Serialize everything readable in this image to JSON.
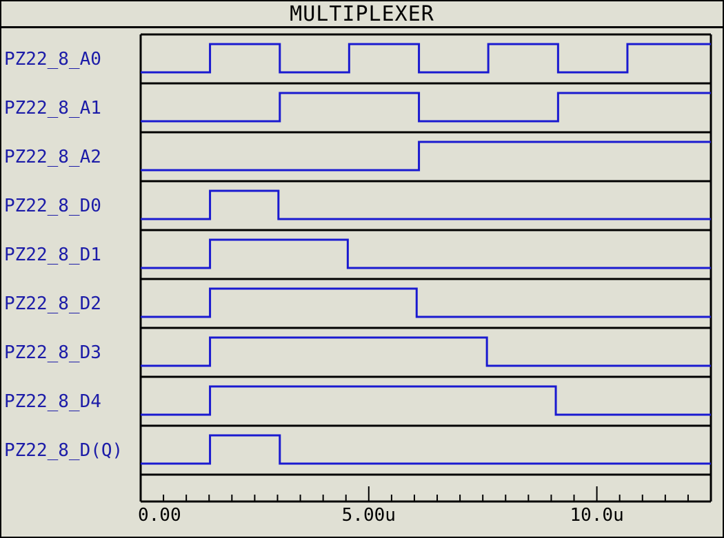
{
  "title": "MULTIPLEXER",
  "colors": {
    "background": "#e0e0d4",
    "signal": "#1a1ad0",
    "grid": "#000000",
    "label": "#1c1ca8"
  },
  "chart_data": {
    "type": "timing",
    "title": "MULTIPLEXER",
    "x_unit": "u",
    "xlim": [
      0,
      12.5
    ],
    "x_ticks": [
      0,
      5,
      10
    ],
    "x_tick_labels": [
      "0.00",
      "5.00u",
      "10.0u"
    ],
    "x_minor_step": 0.5,
    "series": [
      {
        "name": "PZ22_8_A0",
        "initial": 0,
        "transitions": [
          1.52,
          3.05,
          4.57,
          6.1,
          7.62,
          9.15,
          10.67
        ]
      },
      {
        "name": "PZ22_8_A1",
        "initial": 0,
        "transitions": [
          3.05,
          6.1,
          9.15
        ]
      },
      {
        "name": "PZ22_8_A2",
        "initial": 0,
        "transitions": [
          6.1
        ]
      },
      {
        "name": "PZ22_8_D0",
        "initial": 0,
        "transitions": [
          1.52,
          3.02
        ]
      },
      {
        "name": "PZ22_8_D1",
        "initial": 0,
        "transitions": [
          1.52,
          4.54
        ]
      },
      {
        "name": "PZ22_8_D2",
        "initial": 0,
        "transitions": [
          1.52,
          6.05
        ]
      },
      {
        "name": "PZ22_8_D3",
        "initial": 0,
        "transitions": [
          1.52,
          7.59
        ]
      },
      {
        "name": "PZ22_8_D4",
        "initial": 0,
        "transitions": [
          1.52,
          9.1
        ]
      },
      {
        "name": "PZ22_8_D(Q)",
        "initial": 0,
        "transitions": [
          1.52,
          3.05
        ]
      }
    ]
  }
}
